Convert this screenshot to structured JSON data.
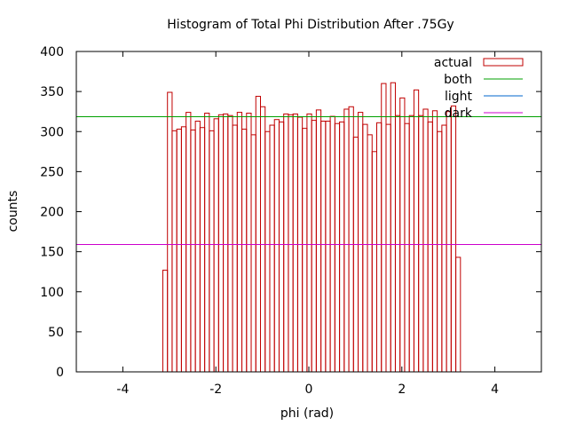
{
  "chart_data": {
    "type": "bar",
    "title": "Histogram of Total Phi Distribution After .75Gy",
    "xlabel": "phi (rad)",
    "ylabel": "counts",
    "xlim": [
      -5,
      5
    ],
    "ylim": [
      0,
      400
    ],
    "xticks": [
      -4,
      -2,
      0,
      2,
      4
    ],
    "yticks": [
      0,
      50,
      100,
      150,
      200,
      250,
      300,
      350,
      400
    ],
    "grid": false,
    "legend_position": "top-right",
    "bin_start": -3.14,
    "bin_width": 0.1,
    "histogram": {
      "name": "actual",
      "color": "#c00000",
      "values": [
        127,
        349,
        301,
        303,
        306,
        324,
        302,
        313,
        305,
        323,
        301,
        316,
        321,
        322,
        320,
        308,
        324,
        303,
        323,
        296,
        344,
        331,
        300,
        308,
        315,
        312,
        322,
        321,
        322,
        318,
        304,
        322,
        314,
        327,
        313,
        313,
        319,
        310,
        312,
        328,
        331,
        293,
        324,
        309,
        296,
        275,
        311,
        360,
        309,
        361,
        320,
        342,
        310,
        320,
        352,
        320,
        328,
        312,
        326,
        300,
        308,
        325,
        332,
        143
      ]
    },
    "lines": [
      {
        "name": "both",
        "value": 318.5,
        "color": "#00a000"
      },
      {
        "name": "light",
        "value": 159,
        "color": "#0066cc"
      },
      {
        "name": "dark",
        "value": 159,
        "color": "#cc00cc"
      }
    ]
  }
}
